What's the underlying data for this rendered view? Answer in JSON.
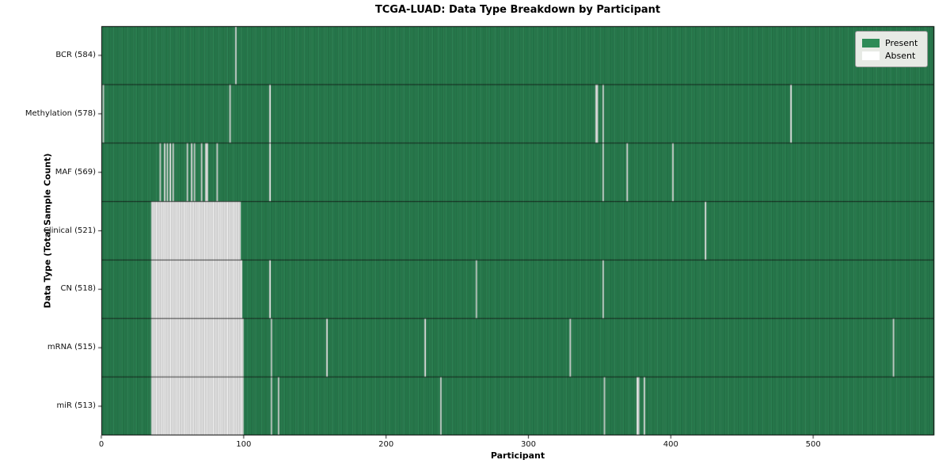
{
  "chart_data": {
    "type": "heatmap",
    "title": "TCGA-LUAD: Data Type Breakdown by Participant",
    "xlabel": "Participant",
    "ylabel": "Data Type (Total Sample Count)",
    "x_ticks": [
      0,
      100,
      200,
      300,
      400,
      500
    ],
    "x_max": 585,
    "total_participants": 585,
    "legend": [
      {
        "label": "Present",
        "color": "#2e8b57"
      },
      {
        "label": "Absent",
        "color": "#ffffff"
      }
    ],
    "colors": {
      "present_fill": "#2f8a58",
      "present_fill_alt": "#2a7e50",
      "present_edge": "#1a5936",
      "absent_fill": "#ffffff",
      "absent_fill_alt": "#ececec",
      "absent_edge": "#9e9e9e"
    },
    "rows": [
      {
        "label": "BCR (584)",
        "name": "BCR",
        "count": 584,
        "absent": [
          94
        ],
        "absent_ranges": []
      },
      {
        "label": "Methylation (578)",
        "name": "Methylation",
        "count": 578,
        "absent": [
          1,
          90,
          118,
          347,
          348,
          352,
          484
        ],
        "absent_ranges": []
      },
      {
        "label": "MAF (569)",
        "name": "MAF",
        "count": 569,
        "absent": [
          41,
          44,
          46,
          48,
          50,
          60,
          63,
          65,
          70,
          73,
          74,
          81,
          118,
          352,
          369,
          401
        ],
        "absent_ranges": []
      },
      {
        "label": "Clinical (521)",
        "name": "Clinical",
        "count": 521,
        "absent": [
          424
        ],
        "absent_ranges": [
          [
            35,
            97
          ]
        ]
      },
      {
        "label": "CN (518)",
        "name": "CN",
        "count": 518,
        "absent": [
          118,
          263,
          352
        ],
        "absent_ranges": [
          [
            35,
            98
          ]
        ]
      },
      {
        "label": "mRNA (515)",
        "name": "mRNA",
        "count": 515,
        "absent": [
          119,
          158,
          227,
          329,
          556
        ],
        "absent_ranges": [
          [
            35,
            99
          ]
        ]
      },
      {
        "label": "miR (513)",
        "name": "miR",
        "count": 513,
        "absent": [
          119,
          124,
          238,
          353,
          376,
          377,
          381
        ],
        "absent_ranges": [
          [
            35,
            99
          ]
        ]
      }
    ]
  }
}
